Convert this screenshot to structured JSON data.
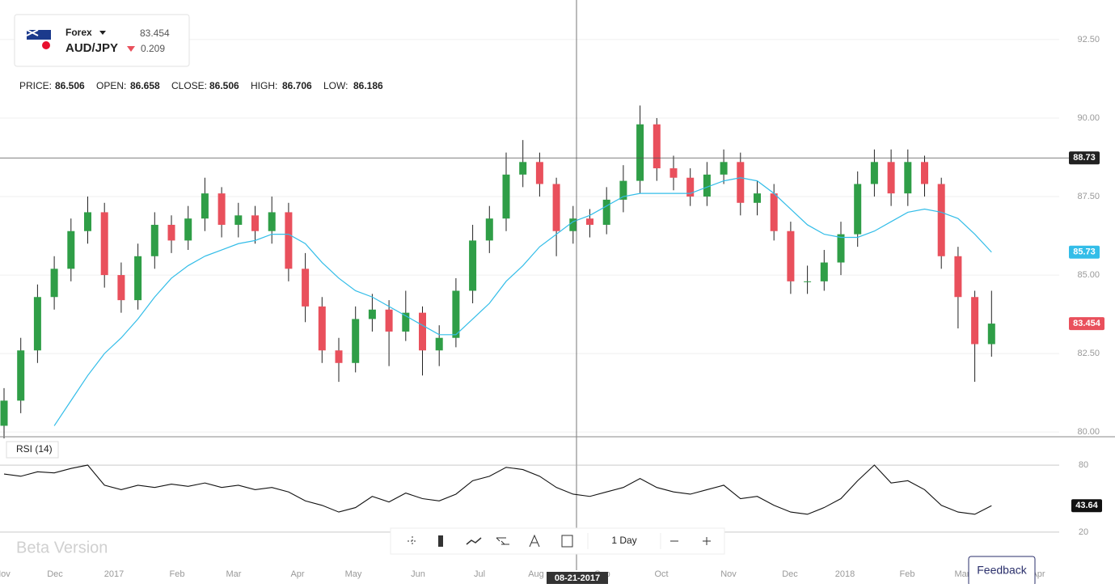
{
  "header": {
    "market": "Forex",
    "symbol": "AUD/JPY",
    "price": 83.454,
    "change": 0.209
  },
  "stats": [
    {
      "label": "PRICE:",
      "value": 86.506
    },
    {
      "label": "OPEN:",
      "value": 86.658
    },
    {
      "label": "CLOSE:",
      "value": 86.506
    },
    {
      "label": "HIGH:",
      "value": 86.706
    },
    {
      "label": "LOW:",
      "value": 86.186
    }
  ],
  "indicator_label": "RSI (14)",
  "watermark": "Beta Version",
  "interval": "1 Day",
  "feedback": "Feedback",
  "chart_data": {
    "type": "candlestick",
    "x_tick_labels": [
      "Nov",
      "Dec",
      "2017",
      "Feb",
      "Mar",
      "Apr",
      "May",
      "Jun",
      "Jul",
      "Aug",
      "Sep",
      "Oct",
      "Nov",
      "Dec",
      "2018",
      "Feb",
      "Mar",
      "Apr"
    ],
    "ylim": [
      79.85,
      93.76
    ],
    "yticks": [
      {
        "value": 80,
        "label": "80.00"
      },
      {
        "value": 82.5,
        "label": "82.50"
      },
      {
        "value": 85,
        "label": "85.00"
      },
      {
        "value": 87.5,
        "label": "87.50"
      },
      {
        "value": 90,
        "label": "90.00"
      },
      {
        "value": 92.5,
        "label": "92.50"
      }
    ],
    "grid": true,
    "up_color": "#2f9e47",
    "down_color": "#e9505c",
    "open": [
      80.2,
      81.0,
      82.6,
      84.3,
      85.2,
      86.4,
      87.0,
      85.0,
      84.2,
      85.6,
      86.6,
      86.1,
      86.8,
      87.6,
      86.6,
      86.9,
      86.4,
      87.0,
      85.2,
      84.0,
      82.6,
      82.2,
      83.6,
      83.9,
      83.2,
      83.8,
      82.6,
      83.0,
      84.5,
      86.1,
      86.8,
      88.2,
      88.6,
      87.9,
      86.4,
      86.8,
      86.6,
      87.4,
      88.0,
      89.8,
      88.4,
      88.1,
      87.5,
      88.2,
      88.6,
      87.3,
      87.6,
      86.4,
      84.8,
      84.8,
      85.4,
      86.3,
      87.9,
      88.6,
      87.6,
      88.6,
      87.9,
      85.6,
      84.3,
      82.8
    ],
    "high": [
      81.4,
      83.0,
      84.7,
      85.6,
      86.8,
      87.5,
      87.3,
      85.4,
      86.0,
      87.0,
      86.9,
      87.2,
      88.1,
      87.8,
      87.3,
      87.2,
      87.5,
      87.3,
      85.7,
      84.3,
      83.0,
      84.0,
      84.4,
      84.2,
      84.5,
      84.0,
      83.4,
      84.9,
      86.6,
      87.2,
      88.9,
      89.3,
      88.9,
      88.1,
      87.2,
      87.1,
      87.8,
      88.5,
      90.4,
      90.0,
      88.8,
      88.4,
      88.6,
      89.0,
      88.9,
      88.0,
      87.9,
      86.7,
      85.3,
      85.8,
      86.7,
      88.3,
      89.0,
      89.0,
      89.0,
      88.8,
      88.1,
      85.9,
      84.5,
      84.5
    ],
    "low": [
      79.8,
      80.6,
      82.2,
      83.9,
      84.8,
      86.0,
      84.6,
      83.8,
      83.9,
      85.2,
      85.7,
      85.8,
      86.4,
      86.2,
      86.2,
      86.0,
      86.0,
      84.8,
      83.5,
      82.2,
      81.6,
      81.9,
      83.2,
      82.1,
      82.9,
      81.8,
      82.1,
      82.7,
      84.1,
      85.7,
      86.4,
      87.8,
      87.5,
      85.6,
      86.0,
      86.2,
      86.3,
      87.0,
      87.6,
      88.0,
      87.7,
      87.2,
      87.2,
      87.9,
      86.9,
      86.9,
      86.1,
      84.4,
      84.4,
      84.5,
      85.0,
      85.9,
      87.5,
      87.2,
      87.2,
      87.5,
      85.2,
      83.3,
      81.6,
      82.4
    ],
    "close": [
      81.0,
      82.6,
      84.3,
      85.2,
      86.4,
      87.0,
      85.0,
      84.2,
      85.6,
      86.6,
      86.1,
      86.8,
      87.6,
      86.6,
      86.9,
      86.4,
      87.0,
      85.2,
      84.0,
      82.6,
      82.2,
      83.6,
      83.9,
      83.2,
      83.8,
      82.6,
      83.0,
      84.5,
      86.1,
      86.8,
      88.2,
      88.6,
      87.9,
      86.4,
      86.8,
      86.6,
      87.4,
      88.0,
      89.8,
      88.4,
      88.1,
      87.5,
      88.2,
      88.6,
      87.3,
      87.6,
      86.4,
      84.8,
      84.8,
      85.4,
      86.3,
      87.9,
      88.6,
      87.6,
      88.6,
      87.9,
      85.6,
      84.3,
      82.8,
      83.454
    ],
    "moving_average": {
      "color": "#33bde8",
      "values": [
        null,
        null,
        null,
        80.2,
        81.0,
        81.8,
        82.5,
        83.0,
        83.6,
        84.3,
        84.9,
        85.3,
        85.6,
        85.8,
        86.0,
        86.1,
        86.3,
        86.3,
        86.0,
        85.4,
        84.9,
        84.5,
        84.3,
        84.0,
        83.7,
        83.4,
        83.1,
        83.1,
        83.6,
        84.1,
        84.8,
        85.3,
        85.9,
        86.3,
        86.7,
        86.9,
        87.2,
        87.5,
        87.6,
        87.6,
        87.6,
        87.6,
        87.8,
        88.0,
        88.1,
        88.0,
        87.6,
        87.1,
        86.6,
        86.3,
        86.2,
        86.2,
        86.4,
        86.7,
        87.0,
        87.1,
        87.0,
        86.8,
        86.3,
        85.73
      ]
    },
    "crosshair": {
      "value": 88.73,
      "date": "08-21-2017"
    },
    "rsi": {
      "ylim": [
        10,
        90
      ],
      "yticks": [
        20,
        80
      ],
      "values": [
        72,
        70,
        74,
        73,
        77,
        80,
        62,
        58,
        62,
        60,
        63,
        61,
        64,
        60,
        62,
        58,
        60,
        56,
        48,
        44,
        38,
        42,
        52,
        47,
        55,
        50,
        48,
        54,
        66,
        70,
        78,
        76,
        70,
        60,
        54,
        52,
        56,
        60,
        68,
        60,
        56,
        54,
        58,
        62,
        50,
        52,
        44,
        38,
        36,
        42,
        50,
        66,
        80,
        64,
        66,
        58,
        44,
        38,
        36,
        43.64
      ]
    }
  }
}
